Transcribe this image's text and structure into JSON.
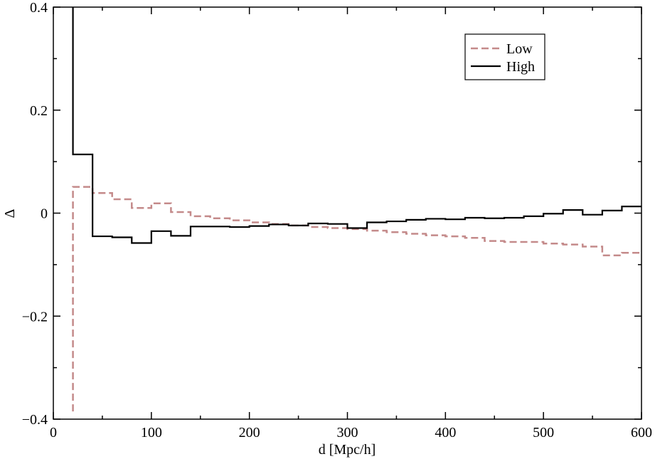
{
  "chart_data": {
    "type": "line",
    "step": true,
    "xlabel": "d [Mpc/h]",
    "ylabel": "Δ",
    "xlim": [
      0,
      600
    ],
    "ylim": [
      -0.4,
      0.4
    ],
    "xticks": [
      0,
      100,
      200,
      300,
      400,
      500,
      600
    ],
    "yticks": [
      -0.4,
      -0.2,
      0,
      0.2,
      0.4
    ],
    "xtick_labels": [
      "0",
      "100",
      "200",
      "300",
      "400",
      "500",
      "600"
    ],
    "ytick_labels": [
      "−0.4",
      "−0.2",
      "0",
      "0.2",
      "0.4"
    ],
    "legend_position": "top-right",
    "grid": false,
    "series": [
      {
        "name": "Low",
        "color": "#c48a8a",
        "dash": true,
        "x": [
          20,
          40,
          60,
          80,
          100,
          120,
          140,
          160,
          180,
          200,
          220,
          240,
          260,
          280,
          300,
          320,
          340,
          360,
          380,
          400,
          420,
          440,
          460,
          480,
          500,
          520,
          540,
          560,
          580,
          600
        ],
        "y": [
          0.051,
          0.039,
          0.027,
          0.01,
          0.019,
          0.002,
          -0.006,
          -0.01,
          -0.014,
          -0.018,
          -0.021,
          -0.024,
          -0.027,
          -0.029,
          -0.031,
          -0.034,
          -0.037,
          -0.04,
          -0.043,
          -0.045,
          -0.048,
          -0.054,
          -0.056,
          -0.056,
          -0.059,
          -0.061,
          -0.065,
          -0.082,
          -0.077,
          -0.077
        ],
        "start": [
          20,
          -0.385
        ]
      },
      {
        "name": "High",
        "color": "#000000",
        "dash": false,
        "x": [
          20,
          40,
          60,
          80,
          100,
          120,
          140,
          160,
          180,
          200,
          220,
          240,
          260,
          280,
          300,
          320,
          340,
          360,
          380,
          400,
          420,
          440,
          460,
          480,
          500,
          520,
          540,
          560,
          580,
          600
        ],
        "y": [
          0.114,
          -0.045,
          -0.047,
          -0.058,
          -0.035,
          -0.044,
          -0.026,
          -0.026,
          -0.027,
          -0.025,
          -0.022,
          -0.024,
          -0.02,
          -0.021,
          -0.029,
          -0.018,
          -0.016,
          -0.013,
          -0.011,
          -0.012,
          -0.009,
          -0.01,
          -0.009,
          -0.006,
          -0.001,
          0.006,
          -0.003,
          0.005,
          0.013,
          0.013
        ],
        "start": [
          20,
          0.4
        ]
      }
    ]
  }
}
